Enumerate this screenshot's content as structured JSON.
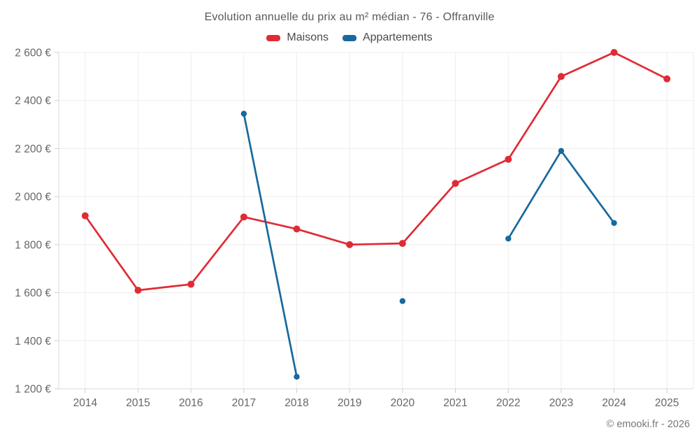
{
  "header": {
    "title": "Evolution annuelle du prix au m² médian - 76 - Offranville"
  },
  "legend": [
    {
      "label": "Maisons",
      "color": "#e02b35"
    },
    {
      "label": "Appartements",
      "color": "#17699e"
    }
  ],
  "footer": {
    "copyright": "© emooki.fr - 2026"
  },
  "chart_data": {
    "type": "line",
    "title": "Evolution annuelle du prix au m² médian - 76 - Offranville",
    "categories": [
      "2014",
      "2015",
      "2016",
      "2017",
      "2018",
      "2019",
      "2020",
      "2021",
      "2022",
      "2023",
      "2024",
      "2025"
    ],
    "series": [
      {
        "name": "Maisons",
        "color": "#e02b35",
        "point_radius": 5,
        "values": [
          1920,
          1610,
          1635,
          1915,
          1865,
          1800,
          1805,
          2055,
          2155,
          2500,
          2600,
          2490
        ]
      },
      {
        "name": "Appartements",
        "color": "#17699e",
        "point_radius": 4.2,
        "values": [
          null,
          null,
          null,
          2345,
          1250,
          null,
          1565,
          null,
          1825,
          2190,
          1890,
          null
        ]
      }
    ],
    "xlabel": "",
    "ylabel": "",
    "y_unit": "€",
    "ylim": [
      1200,
      2600
    ],
    "y_step": 200,
    "y_tick_labels": [
      "1 200 €",
      "1 400 €",
      "1 600 €",
      "1 800 €",
      "2 000 €",
      "2 200 €",
      "2 400 €",
      "2 600 €"
    ],
    "grid": true,
    "legend_position": "top"
  },
  "theme": {
    "grid_color": "#ededed",
    "axis_border_color": "#d8d8d8",
    "tick_color": "#cfcfcf",
    "tick_label_color": "#666666"
  }
}
